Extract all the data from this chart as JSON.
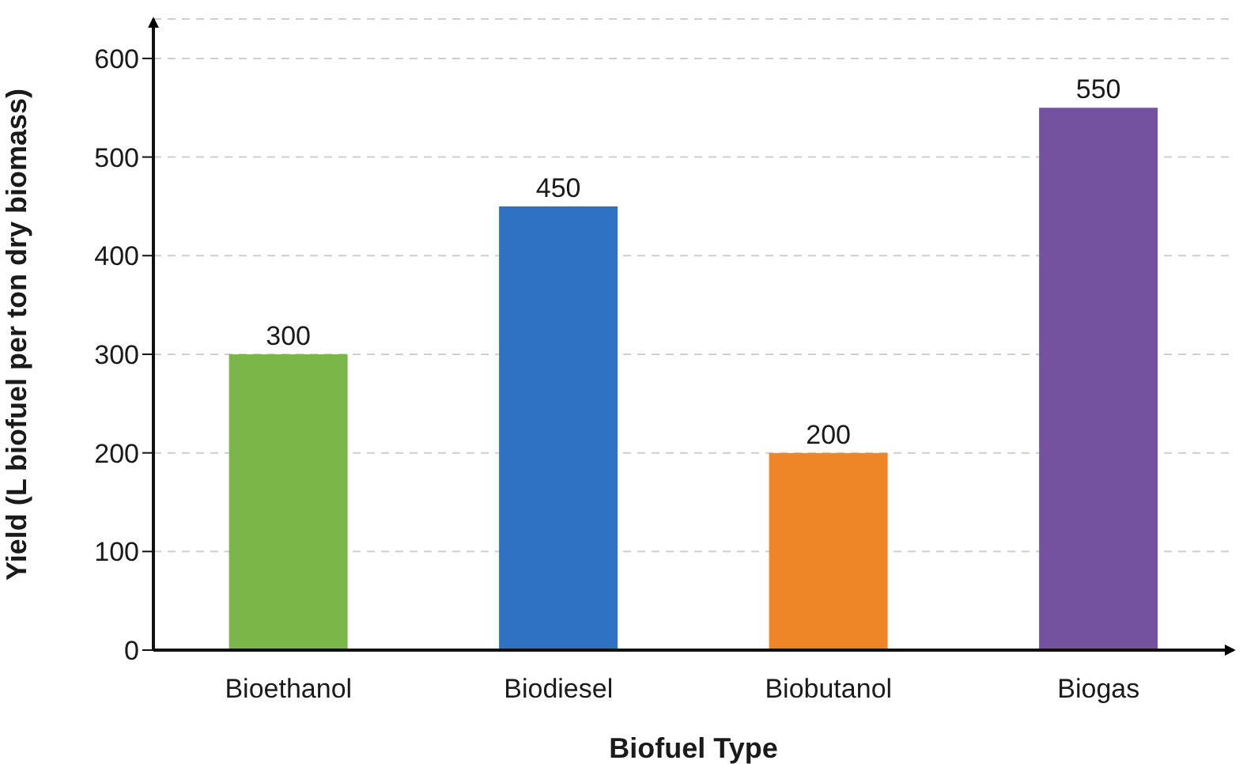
{
  "chart_data": {
    "type": "bar",
    "xlabel": "Biofuel Type",
    "ylabel": "Yield (L biofuel per ton dry biomass)",
    "categories": [
      "Bioethanol",
      "Biodiesel",
      "Biobutanol",
      "Biogas"
    ],
    "values": [
      300,
      450,
      200,
      550
    ],
    "colors": [
      "#7ab648",
      "#2f72c4",
      "#ee8627",
      "#7452a0"
    ],
    "ylim": [
      0,
      640
    ],
    "yticks": [
      0,
      100,
      200,
      300,
      400,
      500,
      600
    ],
    "grid": "y",
    "data_labels": true
  }
}
